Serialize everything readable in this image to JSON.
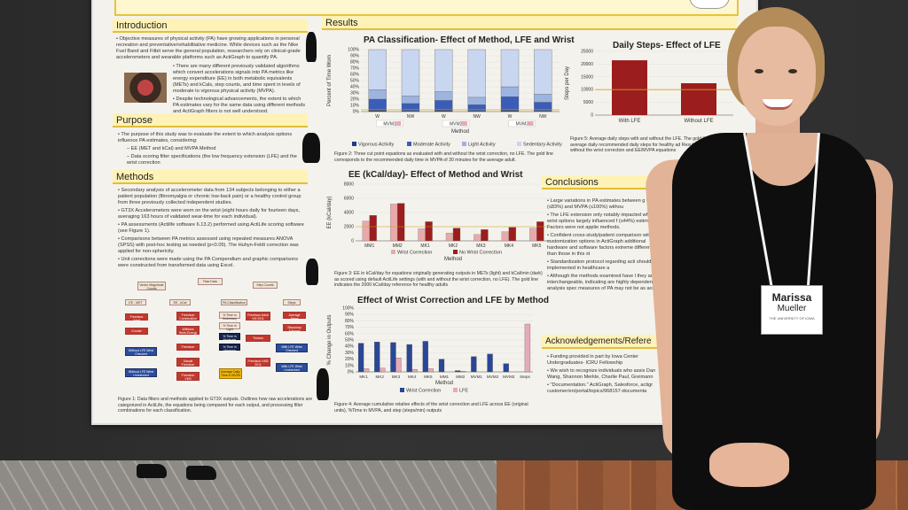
{
  "poster": {
    "intro_title": "Introduction",
    "intro_p1": "Objective measures of physical activity (PA) have growing applications in personal recreation and preventative/rehabilitative medicine. While devices such as the Nike Fuel Band and Fitbit serve the general population, researchers rely on clinical-grade accelerometers and wearable platforms such as ActiGraph to quantify PA.",
    "intro_p2": "There are many different previously validated algorithms which convert accelerations signals into PA metrics like energy expenditure (EE) in both metabolic equivalents (METs) and kCals, step counts, and time spent in levels of moderate to vigorous physical activity (MVPA).",
    "intro_p3": "Despite technological advancements, the extent to which PA estimates vary for the same data using different methods and ActiGraph filters is not well understood.",
    "purpose_title": "Purpose",
    "purpose_p1": "The purpose of this study was to evaluate the extent to which analysis options influence PA estimates, considering:",
    "purpose_p2": "– EE (MET and kCal) and MVPA Method",
    "purpose_p3": "– Data scoring filter specifications (the low frequency extension (LFE) and the wrist correction",
    "methods_title": "Methods",
    "methods_p1": "Secondary analysis of accelerometer data from 134 subjects belonging to either a patient population (fibromyalgia or chronic low-back pain) or a healthy control group from three previously collected independent studies.",
    "methods_p2": "GT3X Accelerometers were worn on the wrist (eight hours daily for fourteen days, averaging 163 hours of validated wear-time for each individual).",
    "methods_p3": "PA assessments (Actilife software 6.13.2) performed using ActiLife scoring software (see Figure 1).",
    "methods_p4": "Comparisons between PA metrics assessed using repeated measures ANOVA (SPSS) with post-hoc testing as needed (p<0.05). The Huhyn-Feldt correction was applied for non-sphericity.",
    "methods_p5": "Unit corrections were made using the PA Compendium and graphic comparisons were constructed from transformed data using Excel.",
    "fig1_caption": "Figure 1: Data filters and methods applied to GT3X outputs. Outlines how raw accelerations are categorized in ActiLife, the equations being compared for each output, and processing filter combinations for each classification.",
    "results_title": "Results",
    "conclusions_title": "Conclusions",
    "conclusions_p1": "Large variations in PA estimates between g for EE (≤83%) and MVPA (≤100%) withou",
    "conclusions_p2": "The LFE extension only notably impacted whereas wrist options largely influenced f (≤44%) estimates. Factors were not applie methods.",
    "conclusions_p3": "Confident cross-study/patient comparison with customization options in ActiGraph additional hardware and software factors extreme differences than those in this st",
    "conclusions_p4": "Standardization protocol regarding acti should be implemented in healthcare a",
    "conclusions_p5": "Although the methods examined have l they are not interchangeable, indicating are highly dependent on analysis spec measures of PA may not be as accurat",
    "ack_title": "Acknowledgements/Refere",
    "ack_p1": "Funding provided in part by Iowa Center Undergraduates- ICRU Fellowship",
    "ack_p2": "We wish to recognize individuals who assis Dan Wang, Shannon Merkle, Charlie Paul, Greimann",
    "ack_p3": "\"Documentation.\" ActiGraph, Salesforce, actigr customer/en/portal/topics/968157-documenta",
    "fig_flow": {
      "root": "Raw Data",
      "n_a1": "Vector Magnitude Counts",
      "n_a2": "Step Counts",
      "n_b1": "EE - MET",
      "n_b2": "EE - kCal",
      "n_b3": "PA Classification",
      "n_b4": "Steps",
      "n_c1": "Freedson Adult",
      "n_c2": "Crouter",
      "n_c3": "Freedson Combination",
      "n_c4": "Williams Work-Energy",
      "n_c5": "Freedson",
      "n_c6": "Sasaki Freedson",
      "n_c7": "Freedson VM3 Combination",
      "n_d1": "% Time in Sedentary",
      "n_d2": "% Time in Light",
      "n_d3": "% Time in Moderate",
      "n_d4": "% Time in Vigorous",
      "n_d5": "Average Daily Time in MVPA",
      "n_e1": "Freedson Adult VM 2011",
      "n_e2": "Troiano",
      "n_e3": "Freedson VM3 2011",
      "n_f1": "Average Steps",
      "n_f2": "Steps/day Average",
      "n_g1": "Without LFE Wrist Checked",
      "n_g2": "Without LFE Wrist Unchecked",
      "n_h1": "With LFE Wrist Checked",
      "n_h2": "With LFE Wrist Unchecked"
    },
    "chart1_caption": "Figure 2: Three cut point equations as evaluated with and without the wrist correction, no LFE. The gold line corresponds to the recommended daily time in MVPA of 30 minutes for the average adult.",
    "chart2_caption": "Figure 3: EE in kCal/day for equations originally generating outputs in METs (light) and kCal/min (dark) as scored using default ActiLife settings (with and without the wrist correction, no LFE). The gold line indicates the 2000 kCal/day reference for healthy adults",
    "chart3_caption": "Figure 4: Average cumulative relative effects of the wrist correction and LFE across EE (original units), %Time in MVPA, and step (steps/min) outputs",
    "chart4_caption": "Figure 5: Average daily steps with and without the LFE. The gold line references average daily recommended daily steps for healthy ad Results are identical with or without the wrist correction and EE/MVPA equations"
  },
  "badge": {
    "first": "Marissa",
    "last": "Mueller",
    "org": "THE UNIVERSITY OF IOWA"
  },
  "chart_data": [
    {
      "type": "bar",
      "title": "PA Classification- Effect of Method, LFE and Wrist",
      "xlabel": "Method",
      "ylabel": "Percent of Time Worn",
      "ylim": [
        0,
        100
      ],
      "categories": [
        "W",
        "NW",
        "W",
        "NW",
        "W",
        "NW"
      ],
      "groups": [
        "MVM1",
        "MVM2",
        "MVM3"
      ],
      "series": [
        {
          "name": "Vigorous Activity",
          "color": "#1f3a8a",
          "values": [
            2,
            1,
            2,
            1,
            2,
            1
          ]
        },
        {
          "name": "Moderate Activity",
          "color": "#3a5db8",
          "values": [
            18,
            12,
            16,
            10,
            22,
            14
          ]
        },
        {
          "name": "Light Activity",
          "color": "#9db3e0",
          "values": [
            15,
            12,
            14,
            12,
            16,
            13
          ]
        },
        {
          "name": "Sedentary Activity",
          "color": "#c9d6ef",
          "values": [
            65,
            75,
            68,
            77,
            60,
            72
          ]
        }
      ],
      "yticks": [
        "0%",
        "10%",
        "20%",
        "30%",
        "40%",
        "50%",
        "60%",
        "70%",
        "80%",
        "90%",
        "100%"
      ]
    },
    {
      "type": "bar",
      "title": "Daily Steps- Effect of LFE",
      "xlabel": "",
      "ylabel": "Steps per Day",
      "ylim": [
        0,
        25000
      ],
      "categories": [
        "With LFE",
        "Without LFE"
      ],
      "values": [
        21500,
        12500
      ],
      "yticks": [
        "0",
        "5000",
        "10000",
        "15000",
        "20000",
        "25000"
      ]
    },
    {
      "type": "bar",
      "title": "EE (kCal/day)- Effect of Method and Wrist",
      "xlabel": "Method",
      "ylabel": "EE (kCal/day)",
      "ylim": [
        0,
        8000
      ],
      "categories": [
        "MM1",
        "MM2",
        "MK1",
        "MK2",
        "MK3",
        "MK4",
        "MK5"
      ],
      "series": [
        {
          "name": "Wrist Correction",
          "color": "#e8a9a9",
          "values": [
            2800,
            5200,
            1700,
            1100,
            900,
            1300,
            1800
          ]
        },
        {
          "name": "No Wrist Correction",
          "color": "#9b1d1d",
          "values": [
            3600,
            5300,
            2700,
            1800,
            1600,
            1900,
            2700
          ]
        }
      ],
      "yticks": [
        "0",
        "2000",
        "4000",
        "6000",
        "8000"
      ]
    },
    {
      "type": "bar",
      "title": "Effect of Wrist Correction and LFE by Method",
      "xlabel": "Method",
      "ylabel": "% Change in Outputs",
      "ylim": [
        0,
        100
      ],
      "categories": [
        "MK1",
        "MK2",
        "MK3",
        "MK4",
        "MK5",
        "MM1",
        "MM2",
        "MVM1",
        "MVM2",
        "MVM3",
        "Steps"
      ],
      "series": [
        {
          "name": "Wrist Correction",
          "color": "#2a4696",
          "values": [
            45,
            47,
            46,
            43,
            48,
            20,
            2,
            24,
            28,
            13,
            0
          ]
        },
        {
          "name": "LFE",
          "color": "#e8a9b6",
          "values": [
            5,
            6,
            22,
            4,
            5,
            0,
            1,
            0,
            0,
            0,
            75
          ]
        }
      ],
      "yticks": [
        "0%",
        "10%",
        "20%",
        "30%",
        "40%",
        "50%",
        "60%",
        "70%",
        "80%",
        "90%",
        "100%"
      ]
    }
  ]
}
